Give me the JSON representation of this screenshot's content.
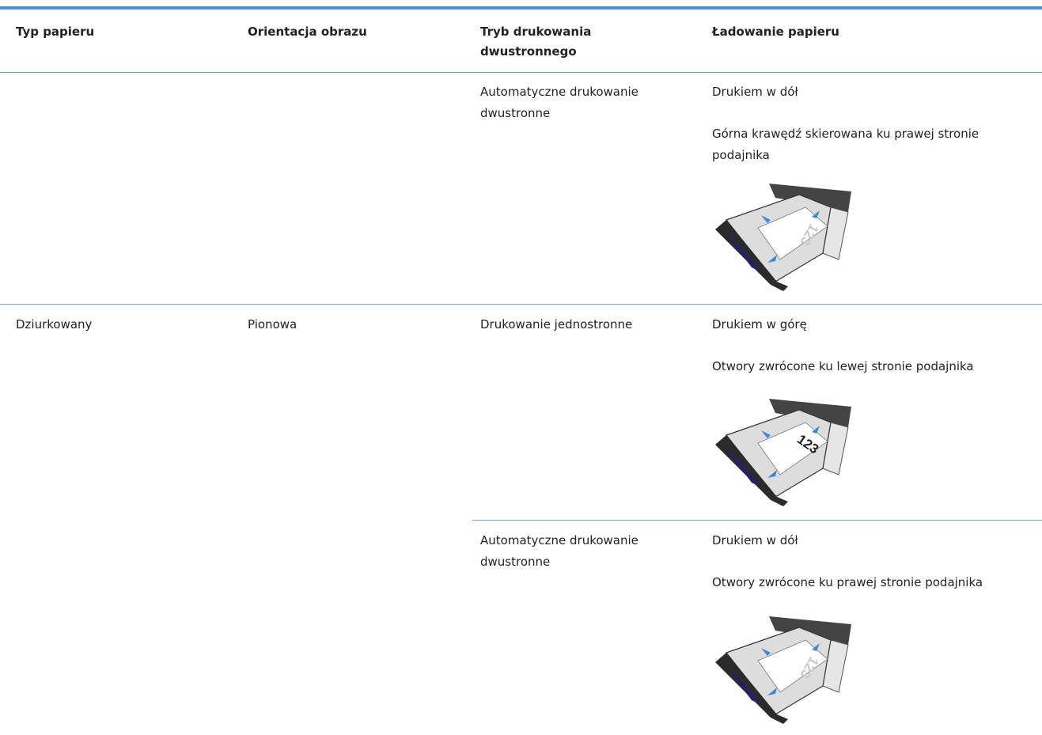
{
  "table": {
    "header": [
      "Typ papieru",
      "Orientacja obrazu",
      "Tryb drukowania dwustronnego",
      "Ładowanie papieru"
    ],
    "rows": [
      {
        "duplex_mode": "Automatyczne drukowanie dwustronne",
        "loading": [
          "Drukiem w dół",
          "Górna krawędź skierowana ku prawej stronie podajnika"
        ],
        "image_text": "123"
      },
      {
        "paper_type": "Dziurkowany",
        "orientation": "Pionowa",
        "duplex_mode": "Drukowanie jednostronne",
        "loading": [
          "Drukiem w górę",
          "Otwory zwrócone ku lewej stronie podajnika"
        ],
        "image_text": "123"
      },
      {
        "duplex_mode": "Automatyczne drukowanie dwustronne",
        "loading": [
          "Drukiem w dół",
          "Otwory zwrócone ku prawej stronie podajnika"
        ],
        "image_text": "123"
      }
    ]
  }
}
